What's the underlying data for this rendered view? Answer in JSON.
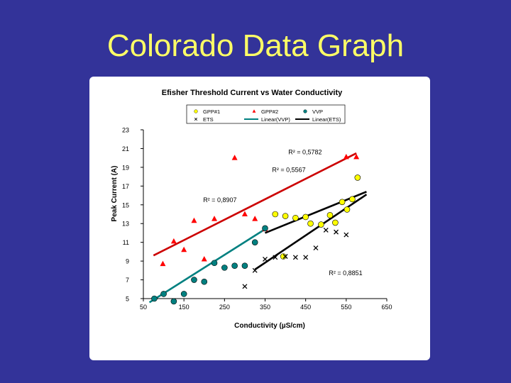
{
  "slide": {
    "title": "Colorado Data Graph"
  },
  "chart_data": {
    "type": "scatter",
    "title": "Efisher Threshold Current vs Water Conductivity",
    "xlabel": "Conductivity (µS/cm)",
    "ylabel": "Peak Current (A)",
    "xlim": [
      50,
      650
    ],
    "ylim": [
      5,
      23
    ],
    "xticks": [
      50,
      150,
      250,
      350,
      450,
      550,
      650
    ],
    "yticks": [
      5,
      7,
      9,
      11,
      13,
      15,
      17,
      19,
      21,
      23
    ],
    "grid": false,
    "legend_position": "top",
    "legend": [
      "GPP#1",
      "GPP#2",
      "VVP",
      "ETS",
      "Linear(VVP)",
      "Linear(ETS)"
    ],
    "series": [
      {
        "name": "GPP#1",
        "marker": "circle",
        "color": "#ffff00",
        "points": [
          [
            375,
            14
          ],
          [
            400,
            13.8
          ],
          [
            425,
            13.6
          ],
          [
            450,
            13.7
          ],
          [
            462,
            13
          ],
          [
            488,
            12.9
          ],
          [
            510,
            13.9
          ],
          [
            523,
            13.1
          ],
          [
            540,
            15.3
          ],
          [
            552,
            14.5
          ],
          [
            565,
            15.6
          ],
          [
            578,
            17.9
          ],
          [
            395,
            9.5
          ]
        ]
      },
      {
        "name": "GPP#2",
        "marker": "triangle",
        "color": "#ff0000",
        "points": [
          [
            98,
            8.7
          ],
          [
            125,
            11.1
          ],
          [
            150,
            10.2
          ],
          [
            175,
            13.3
          ],
          [
            200,
            9.2
          ],
          [
            225,
            13.5
          ],
          [
            275,
            20
          ],
          [
            300,
            14
          ],
          [
            325,
            13.5
          ],
          [
            350,
            12.4
          ],
          [
            575,
            20.1
          ],
          [
            550,
            20.1
          ]
        ]
      },
      {
        "name": "VVP",
        "marker": "circle",
        "color": "#008080",
        "points": [
          [
            77,
            5
          ],
          [
            100,
            5.5
          ],
          [
            125,
            4.7
          ],
          [
            150,
            5.5
          ],
          [
            175,
            7
          ],
          [
            200,
            6.8
          ],
          [
            225,
            8.8
          ],
          [
            250,
            8.3
          ],
          [
            275,
            8.5
          ],
          [
            300,
            8.5
          ],
          [
            325,
            11
          ],
          [
            350,
            12.5
          ]
        ]
      },
      {
        "name": "ETS",
        "marker": "x",
        "color": "#000000",
        "points": [
          [
            300,
            6.3
          ],
          [
            325,
            8
          ],
          [
            350,
            9.2
          ],
          [
            375,
            9.4
          ],
          [
            400,
            9.5
          ],
          [
            425,
            9.4
          ],
          [
            450,
            9.4
          ],
          [
            475,
            10.4
          ],
          [
            500,
            12.3
          ],
          [
            525,
            12.1
          ],
          [
            550,
            11.8
          ]
        ]
      }
    ],
    "fits": [
      {
        "name": "Linear(VVP)",
        "color": "#008080",
        "x": [
          65,
          350
        ],
        "y": [
          4.6,
          12.4
        ],
        "r2_label": "R² = 0,8907"
      },
      {
        "name": "Linear(ETS)",
        "color": "#000000",
        "x": [
          325,
          600
        ],
        "y": [
          8.1,
          16.1
        ],
        "r2_label": "R² = 0,8851"
      },
      {
        "name": "GPP#2 trend",
        "color": "#cc0000",
        "x": [
          75,
          575
        ],
        "y": [
          9.6,
          20.5
        ],
        "r2_label": "R² = 0,5782"
      },
      {
        "name": "GPP#1 trend",
        "color": "#000000",
        "x": [
          350,
          600
        ],
        "y": [
          12,
          16.4
        ],
        "r2_label": "R² = 0,5567"
      }
    ],
    "r2_labels": [
      {
        "text": "R² = 0,5782",
        "color": "#ff0000",
        "at": [
          490,
          20.4
        ]
      },
      {
        "text": "R² = 0,5567",
        "color": "#ff0000",
        "at": [
          450,
          18.5
        ]
      },
      {
        "text": "R² = 0,8907",
        "color": "#ff0000",
        "at": [
          280,
          15.3
        ]
      },
      {
        "text": "R² = 0,8851",
        "color": "#000000",
        "at": [
          590,
          7.5
        ]
      }
    ]
  }
}
